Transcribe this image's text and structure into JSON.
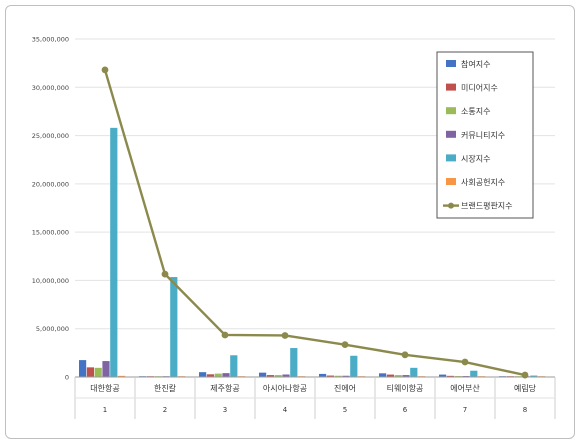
{
  "chart_data": {
    "type": "bar",
    "categories": [
      "대한항공",
      "한진칼",
      "제주항공",
      "아시아나항공",
      "진에어",
      "티웨이항공",
      "에어부산",
      "예림당"
    ],
    "category_numbers": [
      "1",
      "2",
      "3",
      "4",
      "5",
      "6",
      "7",
      "8"
    ],
    "ylim": [
      0,
      35000000
    ],
    "yticks": [
      0,
      5000000,
      10000000,
      15000000,
      20000000,
      25000000,
      30000000,
      35000000
    ],
    "ytick_labels": [
      "0",
      "5,000,000",
      "10,000,000",
      "15,000,000",
      "20,000,000",
      "25,000,000",
      "30,000,000",
      "35,000,000"
    ],
    "grid": true,
    "legend_position": "top-right",
    "series": [
      {
        "name": "참여지수",
        "color": "#4472c4",
        "values": [
          1750000,
          30000,
          500000,
          450000,
          320000,
          380000,
          250000,
          30000
        ]
      },
      {
        "name": "미디어지수",
        "color": "#c0504d",
        "values": [
          1000000,
          20000,
          280000,
          200000,
          150000,
          250000,
          120000,
          10000
        ]
      },
      {
        "name": "소통지수",
        "color": "#9bbb59",
        "values": [
          950000,
          20000,
          350000,
          200000,
          130000,
          200000,
          100000,
          10000
        ]
      },
      {
        "name": "커뮤니티지수",
        "color": "#8064a2",
        "values": [
          1650000,
          20000,
          400000,
          260000,
          130000,
          200000,
          100000,
          10000
        ]
      },
      {
        "name": "시장지수",
        "color": "#4bacc6",
        "values": [
          25800000,
          10350000,
          2250000,
          3000000,
          2200000,
          950000,
          650000,
          150000
        ]
      },
      {
        "name": "사회공헌지수",
        "color": "#f79646",
        "values": [
          120000,
          10000,
          30000,
          40000,
          20000,
          30000,
          20000,
          5000
        ]
      }
    ],
    "line_series": {
      "name": "브랜드평판지수",
      "color": "#8b8a4c",
      "values": [
        31800000,
        10650000,
        4350000,
        4300000,
        3350000,
        2300000,
        1550000,
        200000
      ]
    }
  }
}
